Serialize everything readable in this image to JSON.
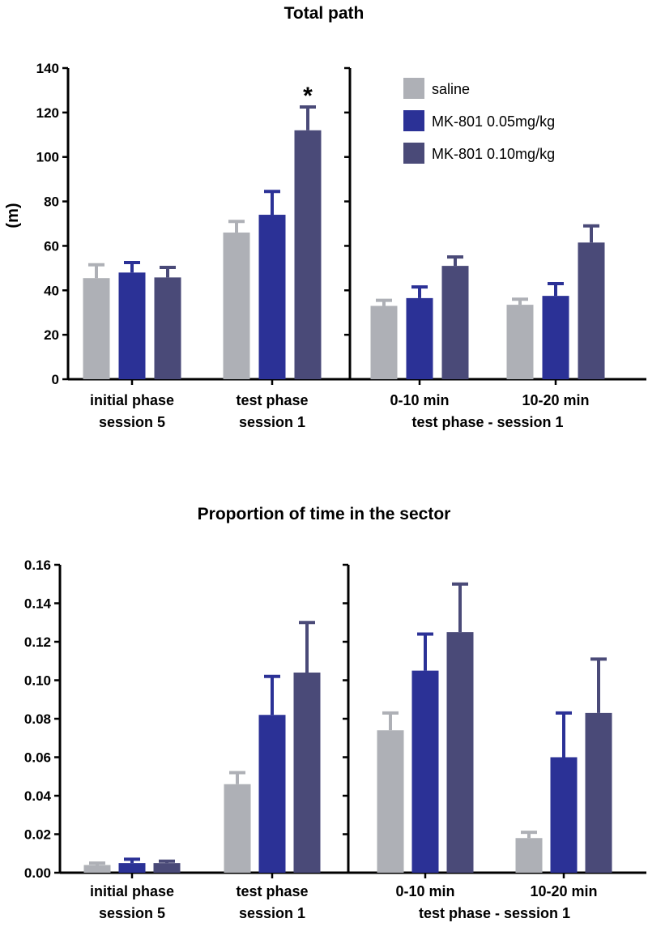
{
  "legend": [
    {
      "label": "saline",
      "color": "#aeb0b6"
    },
    {
      "label": "MK-801 0.05mg/kg",
      "color": "#2b3196"
    },
    {
      "label": "MK-801 0.10mg/kg",
      "color": "#4a4a78"
    }
  ],
  "chart_data": [
    {
      "type": "bar",
      "title": "Total path",
      "ylabel": "(m)",
      "ylim": [
        0,
        140
      ],
      "yticks": [
        "0",
        "20",
        "40",
        "60",
        "80",
        "100",
        "120",
        "140"
      ],
      "series_names": [
        "saline",
        "MK-801 0.05mg/kg",
        "MK-801 0.10mg/kg"
      ],
      "groups": [
        {
          "line1": "initial phase",
          "line2": "session 5",
          "values": [
            45.5,
            48.0,
            45.8
          ],
          "errors": [
            6.0,
            4.5,
            4.5
          ]
        },
        {
          "line1": "test phase",
          "line2": "session 1",
          "values": [
            66.0,
            74.0,
            112.0
          ],
          "errors": [
            5.0,
            10.5,
            10.5
          ],
          "annotations": [
            "",
            "",
            "*"
          ]
        },
        {
          "line1": "0-10 min",
          "line2": "",
          "values": [
            33.0,
            36.5,
            51.0
          ],
          "errors": [
            2.5,
            5.0,
            4.0
          ]
        },
        {
          "line1": "10-20 min",
          "line2": "",
          "values": [
            33.5,
            37.5,
            61.5
          ],
          "errors": [
            2.5,
            5.5,
            7.5
          ]
        }
      ],
      "right_panel_label": "test phase - session 1"
    },
    {
      "type": "bar",
      "title": "Proportion of time in the sector",
      "ylabel": "",
      "ylim": [
        0,
        0.16
      ],
      "yticks": [
        "0.00",
        "0.02",
        "0.04",
        "0.06",
        "0.08",
        "0.10",
        "0.12",
        "0.14",
        "0.16"
      ],
      "series_names": [
        "saline",
        "MK-801 0.05mg/kg",
        "MK-801 0.10mg/kg"
      ],
      "groups": [
        {
          "line1": "initial phase",
          "line2": "session 5",
          "values": [
            0.004,
            0.005,
            0.005
          ],
          "errors": [
            0.001,
            0.002,
            0.001
          ]
        },
        {
          "line1": "test phase",
          "line2": "session 1",
          "values": [
            0.046,
            0.082,
            0.104
          ],
          "errors": [
            0.006,
            0.02,
            0.026
          ]
        },
        {
          "line1": "0-10 min",
          "line2": "",
          "values": [
            0.074,
            0.105,
            0.125
          ],
          "errors": [
            0.009,
            0.019,
            0.025
          ]
        },
        {
          "line1": "10-20 min",
          "line2": "",
          "values": [
            0.018,
            0.06,
            0.083
          ],
          "errors": [
            0.003,
            0.023,
            0.028
          ]
        }
      ],
      "right_panel_label": "test phase - session 1"
    }
  ]
}
